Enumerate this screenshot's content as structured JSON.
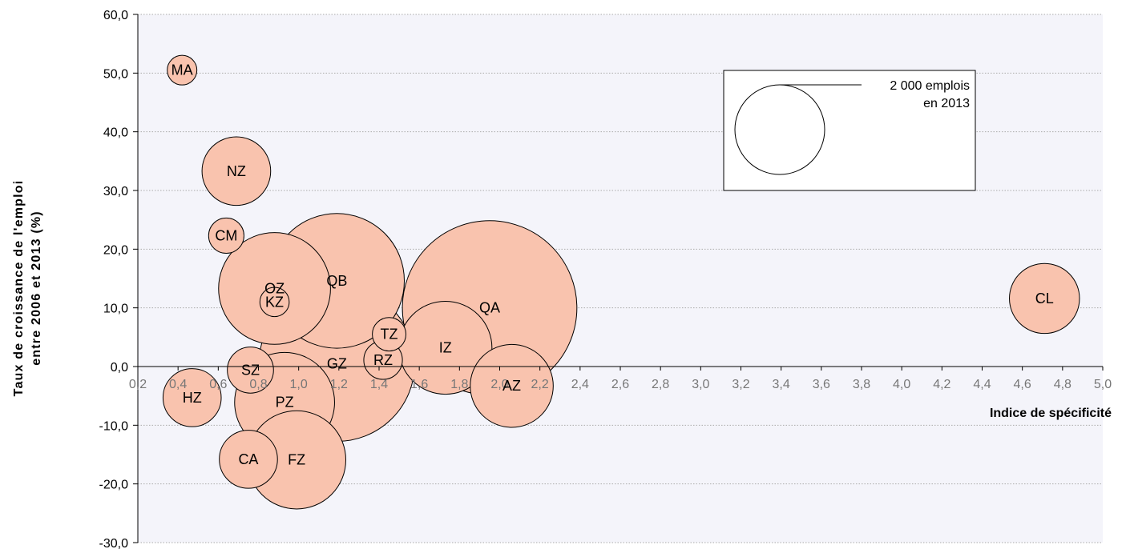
{
  "chart_data": {
    "type": "scatter",
    "variant": "bubble",
    "xlabel": "Indice de spécificité",
    "ylabel": [
      "Taux de croissance de l'emploi",
      "entre 2006 et 2013 (%)"
    ],
    "xlim": [
      0.2,
      5.0
    ],
    "ylim": [
      -30,
      60
    ],
    "x_ticks": [
      "0,2",
      "0,4",
      "0,6",
      "0,8",
      "1,0",
      "1,2",
      "1,4",
      "1,6",
      "1,8",
      "2,0",
      "2,2",
      "2,4",
      "2,6",
      "2,8",
      "3,0",
      "3,2",
      "3,4",
      "3,6",
      "3,8",
      "4,0",
      "4,2",
      "4,4",
      "4,6",
      "4,8",
      "5,0"
    ],
    "y_ticks": [
      "60,0",
      "50,0",
      "40,0",
      "30,0",
      "20,0",
      "10,0",
      "0,0",
      "-10,0",
      "-20,0",
      "-30,0"
    ],
    "x_tick_values": [
      0.2,
      0.4,
      0.6,
      0.8,
      1.0,
      1.2,
      1.4,
      1.6,
      1.8,
      2.0,
      2.2,
      2.4,
      2.6,
      2.8,
      3.0,
      3.2,
      3.4,
      3.6,
      3.8,
      4.0,
      4.2,
      4.4,
      4.6,
      4.8,
      5.0
    ],
    "y_tick_values": [
      60,
      50,
      40,
      30,
      20,
      10,
      0,
      -10,
      -20,
      -30
    ],
    "grid": "horizontal",
    "colors": {
      "bubble_fill": "#f9c3ae",
      "bubble_stroke": "#000000",
      "grid": "#aaaaaa",
      "plot_bg": "#f4f4fa"
    },
    "legend": {
      "label_line1": "2 000 emplois",
      "label_line2": "en 2013",
      "size": 2000,
      "placement": "top-right"
    },
    "points": [
      {
        "label": "MA",
        "x": 0.42,
        "y": 50.5,
        "size": 218
      },
      {
        "label": "NZ",
        "x": 0.69,
        "y": 33.3,
        "size": 1170
      },
      {
        "label": "CM",
        "x": 0.64,
        "y": 22.3,
        "size": 310
      },
      {
        "label": "OZ",
        "x": 0.88,
        "y": 13.3,
        "size": 3110
      },
      {
        "label": "KZ",
        "x": 0.88,
        "y": 11.0,
        "size": 213
      },
      {
        "label": "QB",
        "x": 1.19,
        "y": 14.6,
        "size": 4520
      },
      {
        "label": "GZ",
        "x": 1.19,
        "y": 0.5,
        "size": 6020
      },
      {
        "label": "QA",
        "x": 1.95,
        "y": 10.0,
        "size": 7560
      },
      {
        "label": "TZ",
        "x": 1.45,
        "y": 5.5,
        "size": 280
      },
      {
        "label": "IZ",
        "x": 1.73,
        "y": 3.2,
        "size": 2150
      },
      {
        "label": "RZ",
        "x": 1.42,
        "y": 1.1,
        "size": 370
      },
      {
        "label": "CL",
        "x": 4.71,
        "y": 11.6,
        "size": 1220
      },
      {
        "label": "SZ",
        "x": 0.76,
        "y": -0.6,
        "size": 530
      },
      {
        "label": "PZ",
        "x": 0.93,
        "y": -6.1,
        "size": 2480
      },
      {
        "label": "HZ",
        "x": 0.47,
        "y": -5.3,
        "size": 840
      },
      {
        "label": "AZ",
        "x": 2.06,
        "y": -3.3,
        "size": 1710
      },
      {
        "label": "CA",
        "x": 0.75,
        "y": -15.8,
        "size": 840
      },
      {
        "label": "FZ",
        "x": 0.99,
        "y": -15.9,
        "size": 2400
      }
    ]
  }
}
